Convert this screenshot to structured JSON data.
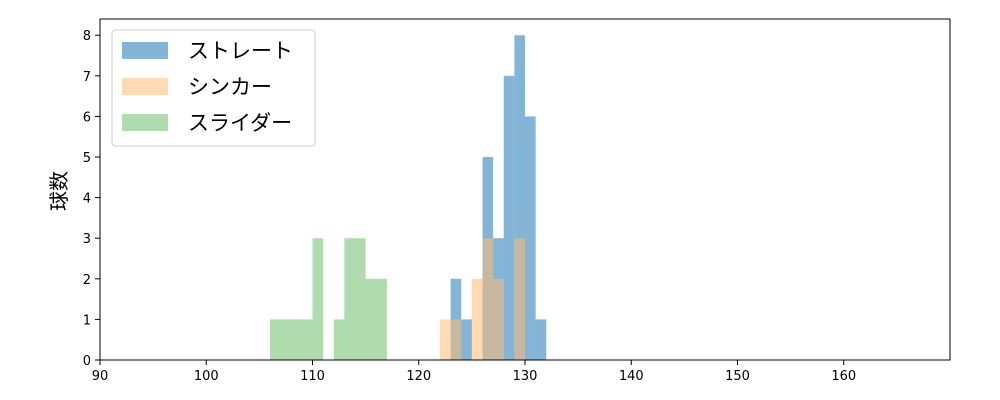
{
  "chart_data": {
    "type": "histogram",
    "title": "",
    "xlabel": "",
    "ylabel": "球数",
    "xlim": [
      90,
      170
    ],
    "ylim": [
      0,
      8.4
    ],
    "xticks": [
      90,
      100,
      110,
      120,
      130,
      140,
      150,
      160
    ],
    "yticks": [
      0,
      1,
      2,
      3,
      4,
      5,
      6,
      7,
      8
    ],
    "grid": false,
    "legend_position": "top-left",
    "series": [
      {
        "name": "ストレート",
        "color": "#1f77b4",
        "alpha": 0.55,
        "bins": [
          {
            "x0": 123,
            "x1": 124,
            "y": 2
          },
          {
            "x0": 124,
            "x1": 125,
            "y": 1
          },
          {
            "x0": 126,
            "x1": 127,
            "y": 5
          },
          {
            "x0": 127,
            "x1": 128,
            "y": 3
          },
          {
            "x0": 128,
            "x1": 129,
            "y": 7
          },
          {
            "x0": 129,
            "x1": 130,
            "y": 8
          },
          {
            "x0": 130,
            "x1": 131,
            "y": 6
          },
          {
            "x0": 131,
            "x1": 132,
            "y": 1
          }
        ]
      },
      {
        "name": "シンカー",
        "color": "#ffbb78",
        "alpha": 0.55,
        "bins": [
          {
            "x0": 122,
            "x1": 123,
            "y": 1
          },
          {
            "x0": 123,
            "x1": 124,
            "y": 1
          },
          {
            "x0": 125,
            "x1": 126,
            "y": 2
          },
          {
            "x0": 126,
            "x1": 127,
            "y": 3
          },
          {
            "x0": 127,
            "x1": 128,
            "y": 2
          },
          {
            "x0": 129,
            "x1": 130,
            "y": 3
          }
        ]
      },
      {
        "name": "スライダー",
        "color": "#2ca02c",
        "alpha": 0.38,
        "bins": [
          {
            "x0": 106,
            "x1": 110,
            "y": 1
          },
          {
            "x0": 110,
            "x1": 111,
            "y": 3
          },
          {
            "x0": 112,
            "x1": 113,
            "y": 1
          },
          {
            "x0": 113,
            "x1": 115,
            "y": 3
          },
          {
            "x0": 115,
            "x1": 117,
            "y": 2
          }
        ]
      }
    ]
  }
}
